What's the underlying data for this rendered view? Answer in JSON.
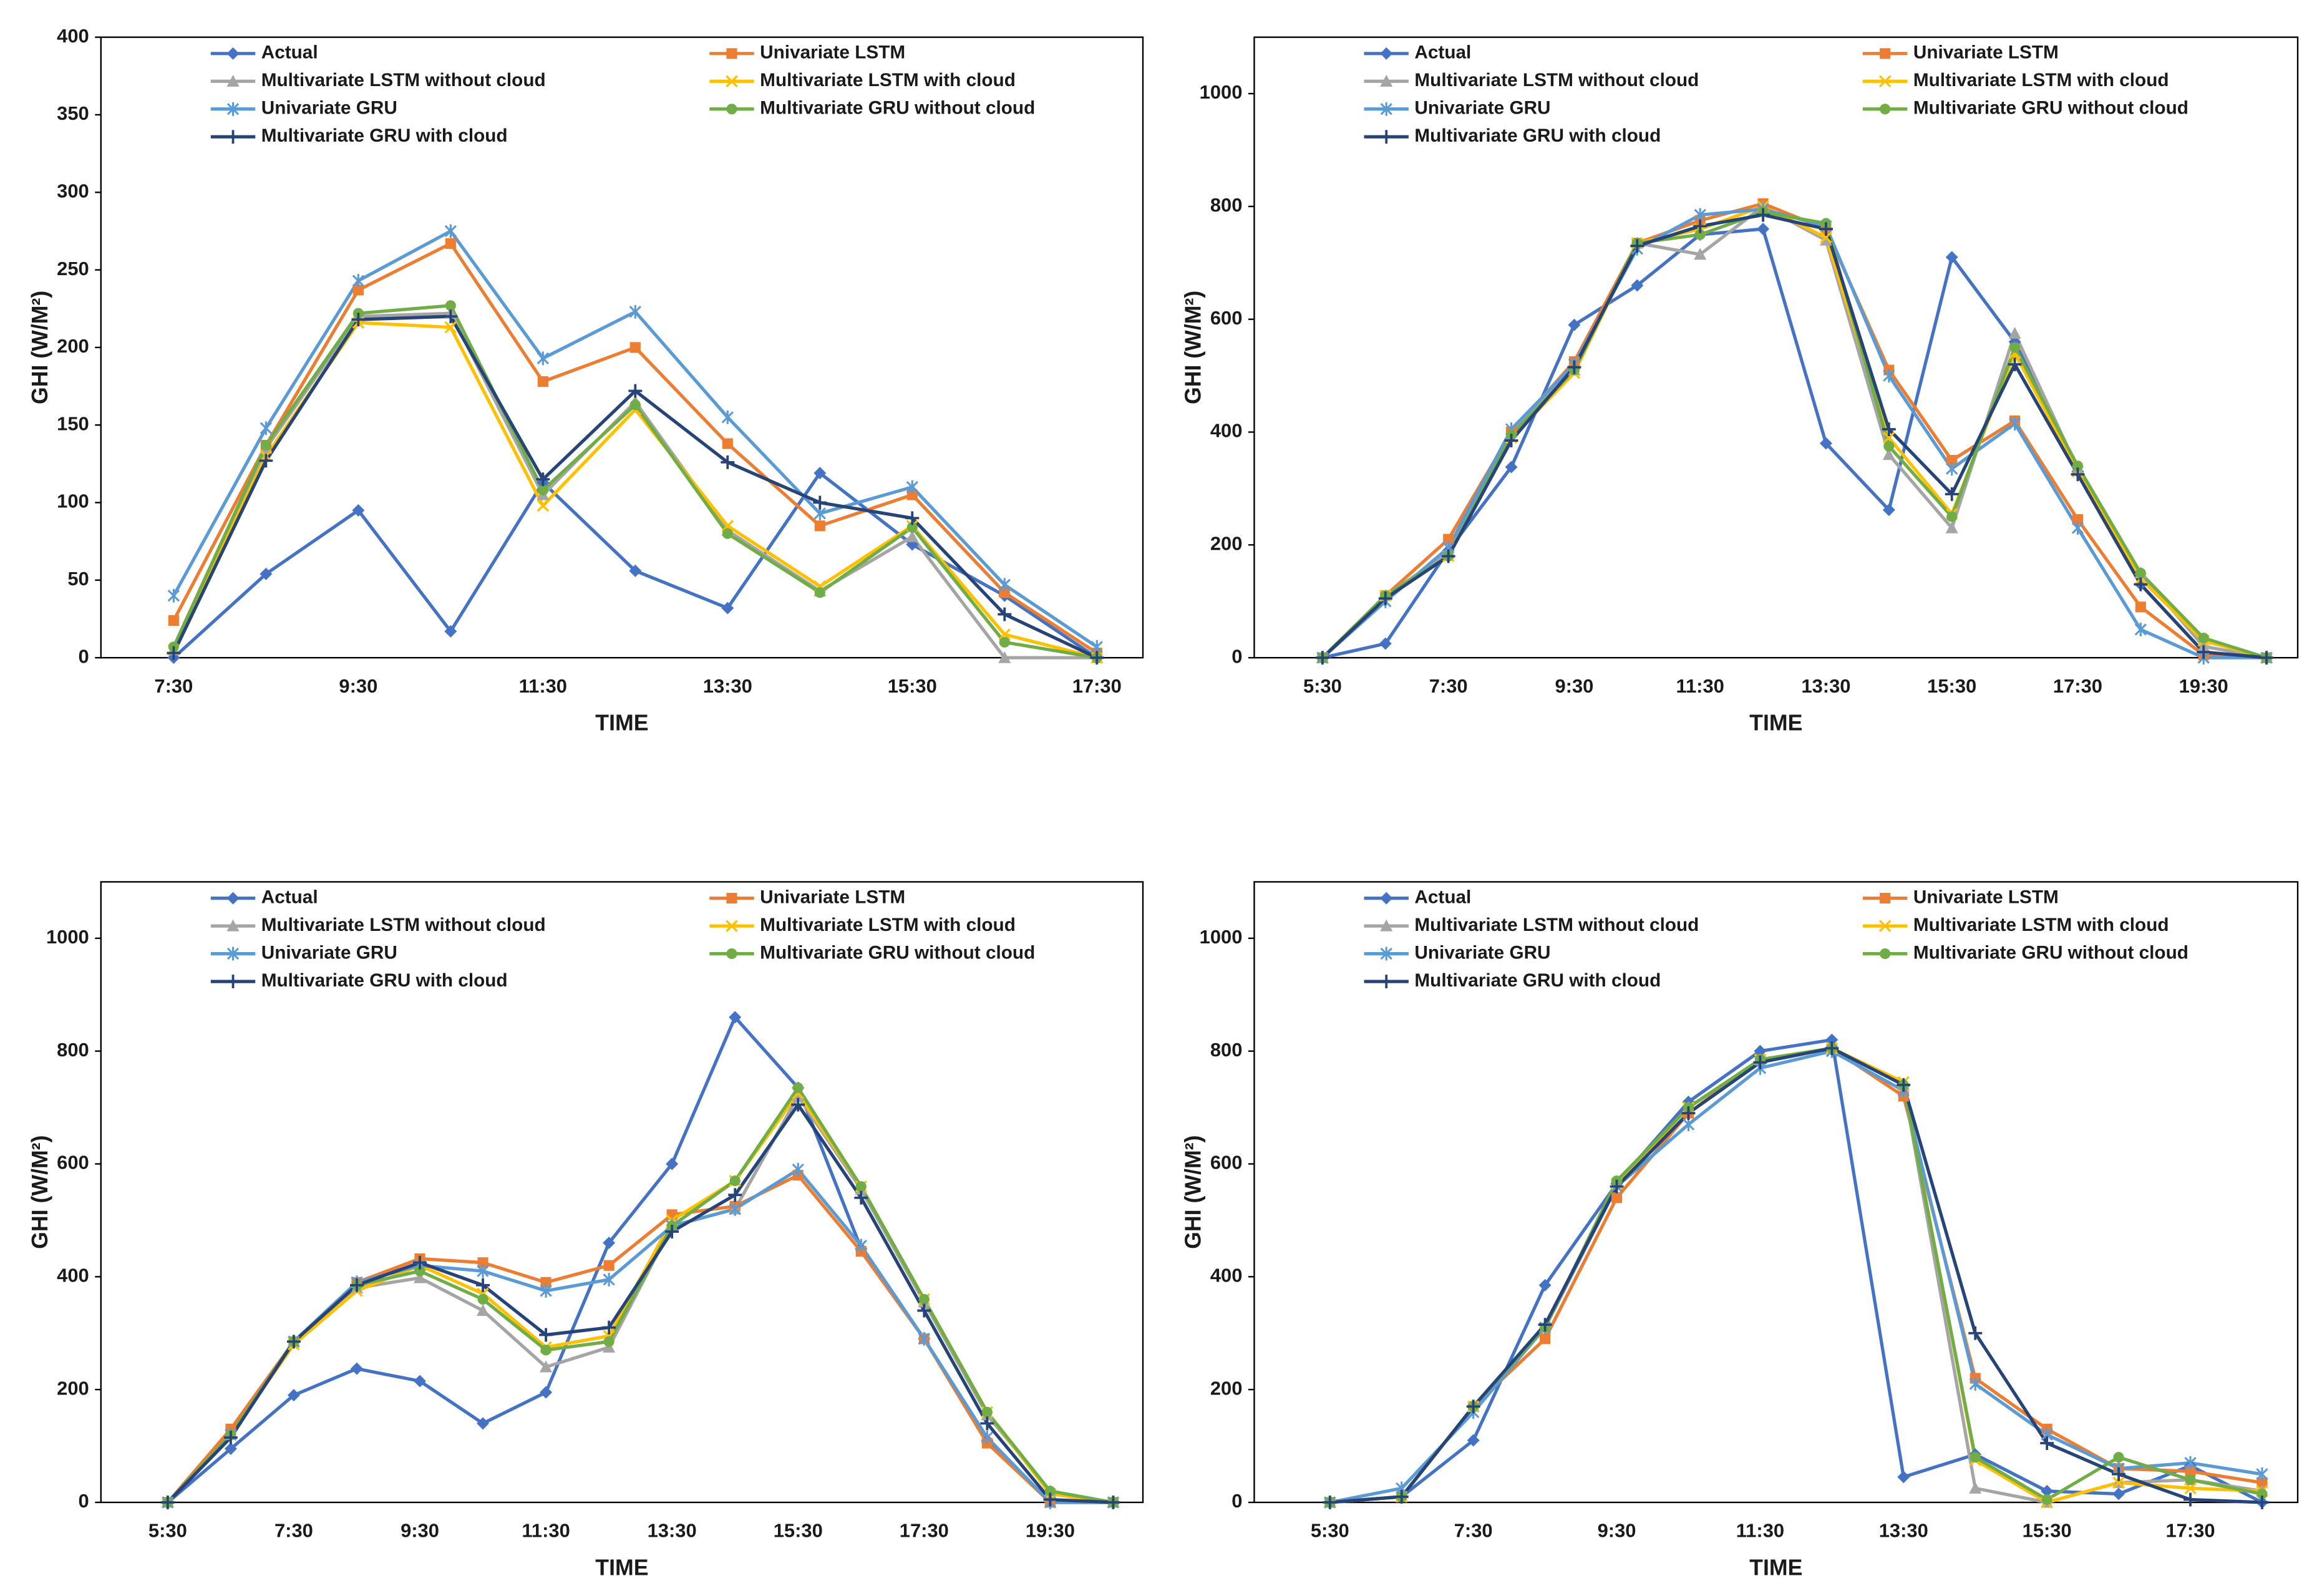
{
  "chart_data": [
    {
      "type": "line",
      "xlabel": "TIME",
      "ylabel": "GHI (W/M²)",
      "categories": [
        "7:30",
        null,
        "9:30",
        null,
        "11:30",
        null,
        "13:30",
        null,
        "15:30",
        null,
        "17:30"
      ],
      "ylim": [
        0,
        400
      ],
      "yticks": [
        0,
        50,
        100,
        150,
        200,
        250,
        300,
        350,
        400
      ],
      "grid": false,
      "series": [
        {
          "name": "Actual",
          "color": "#4472c4",
          "marker": "diamond",
          "values": [
            0,
            54,
            95,
            17,
            113,
            56,
            32,
            119,
            73,
            40,
            0
          ]
        },
        {
          "name": "Univariate LSTM",
          "color": "#ed7d31",
          "marker": "square",
          "values": [
            24,
            137,
            237,
            267,
            178,
            200,
            138,
            85,
            105,
            42,
            3
          ]
        },
        {
          "name": "Multivariate LSTM without cloud",
          "color": "#a5a5a5",
          "marker": "triangle",
          "values": [
            5,
            135,
            220,
            222,
            105,
            165,
            82,
            43,
            78,
            0,
            0
          ]
        },
        {
          "name": "Multivariate LSTM with cloud",
          "color": "#ffc000",
          "marker": "x",
          "values": [
            5,
            130,
            216,
            213,
            98,
            160,
            85,
            46,
            85,
            15,
            0
          ]
        },
        {
          "name": "Univariate GRU",
          "color": "#5b9bd5",
          "marker": "star",
          "values": [
            40,
            148,
            243,
            275,
            193,
            223,
            155,
            93,
            110,
            47,
            7
          ]
        },
        {
          "name": "Multivariate GRU without cloud",
          "color": "#70ad47",
          "marker": "circle",
          "values": [
            7,
            137,
            222,
            227,
            108,
            163,
            80,
            42,
            84,
            10,
            0
          ]
        },
        {
          "name": "Multivariate GRU with cloud",
          "color": "#264478",
          "marker": "plus",
          "values": [
            3,
            127,
            218,
            220,
            115,
            172,
            126,
            100,
            90,
            28,
            0
          ]
        }
      ]
    },
    {
      "type": "line",
      "xlabel": "TIME",
      "ylabel": "GHI (W/M²)",
      "categories": [
        "5:30",
        null,
        "7:30",
        null,
        "9:30",
        null,
        "11:30",
        null,
        "13:30",
        null,
        "15:30",
        null,
        "17:30",
        null,
        "19:30",
        null
      ],
      "ylim": [
        0,
        1100
      ],
      "yticks": [
        0,
        200,
        400,
        600,
        800,
        1000
      ],
      "grid": false,
      "series": [
        {
          "name": "Actual",
          "color": "#4472c4",
          "marker": "diamond",
          "values": [
            0,
            25,
            190,
            338,
            590,
            660,
            750,
            760,
            380,
            262,
            710,
            560,
            330,
            130,
            10,
            0
          ]
        },
        {
          "name": "Univariate LSTM",
          "color": "#ed7d31",
          "marker": "square",
          "values": [
            0,
            110,
            210,
            400,
            525,
            735,
            775,
            805,
            760,
            510,
            350,
            420,
            245,
            90,
            5,
            0
          ]
        },
        {
          "name": "Multivariate LSTM without cloud",
          "color": "#a5a5a5",
          "marker": "triangle",
          "values": [
            0,
            110,
            185,
            400,
            510,
            735,
            715,
            800,
            740,
            360,
            230,
            575,
            335,
            150,
            20,
            0
          ]
        },
        {
          "name": "Multivariate LSTM with cloud",
          "color": "#ffc000",
          "marker": "x",
          "values": [
            0,
            110,
            180,
            390,
            505,
            735,
            760,
            800,
            745,
            390,
            255,
            540,
            330,
            140,
            30,
            0
          ]
        },
        {
          "name": "Univariate GRU",
          "color": "#5b9bd5",
          "marker": "star",
          "values": [
            0,
            100,
            195,
            405,
            520,
            725,
            785,
            795,
            765,
            500,
            335,
            415,
            230,
            50,
            0,
            0
          ]
        },
        {
          "name": "Multivariate GRU without cloud",
          "color": "#70ad47",
          "marker": "circle",
          "values": [
            0,
            110,
            180,
            395,
            510,
            735,
            750,
            790,
            770,
            375,
            250,
            550,
            340,
            150,
            35,
            0
          ]
        },
        {
          "name": "Multivariate GRU with cloud",
          "color": "#264478",
          "marker": "plus",
          "values": [
            0,
            105,
            180,
            385,
            515,
            730,
            765,
            785,
            760,
            405,
            290,
            520,
            325,
            130,
            10,
            0
          ]
        }
      ]
    },
    {
      "type": "line",
      "xlabel": "TIME",
      "ylabel": "GHI (W/M²)",
      "categories": [
        "5:30",
        null,
        "7:30",
        null,
        "9:30",
        null,
        "11:30",
        null,
        "13:30",
        null,
        "15:30",
        null,
        "17:30",
        null,
        "19:30",
        null
      ],
      "ylim": [
        0,
        1100
      ],
      "yticks": [
        0,
        200,
        400,
        600,
        800,
        1000
      ],
      "grid": false,
      "series": [
        {
          "name": "Actual",
          "color": "#4472c4",
          "marker": "diamond",
          "values": [
            0,
            95,
            190,
            237,
            215,
            140,
            195,
            460,
            600,
            860,
            735,
            450,
            290,
            110,
            0,
            0
          ]
        },
        {
          "name": "Univariate LSTM",
          "color": "#ed7d31",
          "marker": "square",
          "values": [
            0,
            130,
            285,
            390,
            432,
            425,
            390,
            420,
            510,
            525,
            580,
            445,
            290,
            105,
            0,
            0
          ]
        },
        {
          "name": "Multivariate LSTM without cloud",
          "color": "#a5a5a5",
          "marker": "triangle",
          "values": [
            0,
            120,
            285,
            380,
            398,
            340,
            240,
            275,
            490,
            520,
            720,
            555,
            355,
            155,
            20,
            0
          ]
        },
        {
          "name": "Multivariate LSTM with cloud",
          "color": "#ffc000",
          "marker": "x",
          "values": [
            0,
            120,
            280,
            375,
            420,
            370,
            275,
            295,
            500,
            570,
            725,
            560,
            360,
            160,
            15,
            0
          ]
        },
        {
          "name": "Univariate GRU",
          "color": "#5b9bd5",
          "marker": "star",
          "values": [
            0,
            120,
            285,
            390,
            420,
            410,
            375,
            395,
            490,
            520,
            590,
            455,
            290,
            115,
            0,
            0
          ]
        },
        {
          "name": "Multivariate GRU without cloud",
          "color": "#70ad47",
          "marker": "circle",
          "values": [
            0,
            120,
            285,
            385,
            410,
            360,
            270,
            285,
            490,
            570,
            735,
            560,
            360,
            160,
            20,
            0
          ]
        },
        {
          "name": "Multivariate GRU with cloud",
          "color": "#264478",
          "marker": "plus",
          "values": [
            0,
            115,
            285,
            385,
            425,
            385,
            297,
            310,
            480,
            545,
            705,
            540,
            340,
            140,
            5,
            0
          ]
        }
      ]
    },
    {
      "type": "line",
      "xlabel": "TIME",
      "ylabel": "GHI (W/M²)",
      "categories": [
        "5:30",
        null,
        "7:30",
        null,
        "9:30",
        null,
        "11:30",
        null,
        "13:30",
        null,
        "15:30",
        null,
        "17:30",
        null
      ],
      "ylim": [
        0,
        1100
      ],
      "yticks": [
        0,
        200,
        400,
        600,
        800,
        1000
      ],
      "grid": false,
      "series": [
        {
          "name": "Actual",
          "color": "#4472c4",
          "marker": "diamond",
          "values": [
            0,
            10,
            110,
            385,
            565,
            710,
            800,
            820,
            45,
            85,
            20,
            15,
            65,
            0
          ]
        },
        {
          "name": "Univariate LSTM",
          "color": "#ed7d31",
          "marker": "square",
          "values": [
            0,
            10,
            170,
            290,
            540,
            690,
            785,
            805,
            720,
            220,
            130,
            60,
            55,
            35
          ]
        },
        {
          "name": "Multivariate LSTM without cloud",
          "color": "#a5a5a5",
          "marker": "triangle",
          "values": [
            0,
            10,
            170,
            310,
            565,
            700,
            785,
            805,
            740,
            25,
            0,
            35,
            40,
            20
          ]
        },
        {
          "name": "Multivariate LSTM with cloud",
          "color": "#ffc000",
          "marker": "x",
          "values": [
            0,
            10,
            170,
            310,
            565,
            700,
            785,
            805,
            745,
            75,
            0,
            35,
            25,
            20
          ]
        },
        {
          "name": "Univariate GRU",
          "color": "#5b9bd5",
          "marker": "star",
          "values": [
            0,
            25,
            160,
            310,
            560,
            670,
            770,
            800,
            730,
            210,
            120,
            60,
            70,
            50
          ]
        },
        {
          "name": "Multivariate GRU without cloud",
          "color": "#70ad47",
          "marker": "circle",
          "values": [
            0,
            10,
            170,
            310,
            570,
            700,
            785,
            805,
            740,
            80,
            5,
            80,
            40,
            15
          ]
        },
        {
          "name": "Multivariate GRU with cloud",
          "color": "#264478",
          "marker": "plus",
          "values": [
            0,
            10,
            170,
            315,
            560,
            690,
            780,
            805,
            740,
            300,
            105,
            50,
            5,
            0
          ]
        }
      ]
    }
  ]
}
